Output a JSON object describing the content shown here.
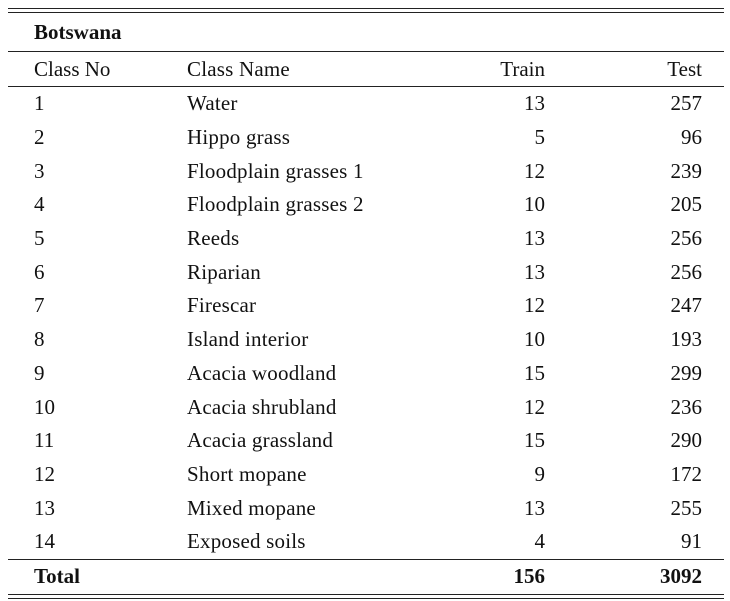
{
  "table": {
    "title": "Botswana",
    "headers": {
      "class_no": "Class No",
      "class_name": "Class Name",
      "train": "Train",
      "test": "Test"
    },
    "rows": [
      {
        "no": "1",
        "name": "Water",
        "train": "13",
        "test": "257"
      },
      {
        "no": "2",
        "name": "Hippo grass",
        "train": "5",
        "test": "96"
      },
      {
        "no": "3",
        "name": "Floodplain grasses 1",
        "train": "12",
        "test": "239"
      },
      {
        "no": "4",
        "name": "Floodplain grasses 2",
        "train": "10",
        "test": "205"
      },
      {
        "no": "5",
        "name": "Reeds",
        "train": "13",
        "test": "256"
      },
      {
        "no": "6",
        "name": "Riparian",
        "train": "13",
        "test": "256"
      },
      {
        "no": "7",
        "name": "Firescar",
        "train": "12",
        "test": "247"
      },
      {
        "no": "8",
        "name": "Island interior",
        "train": "10",
        "test": "193"
      },
      {
        "no": "9",
        "name": "Acacia woodland",
        "train": "15",
        "test": "299"
      },
      {
        "no": "10",
        "name": "Acacia shrubland",
        "train": "12",
        "test": "236"
      },
      {
        "no": "11",
        "name": "Acacia grassland",
        "train": "15",
        "test": "290"
      },
      {
        "no": "12",
        "name": "Short mopane",
        "train": "9",
        "test": "172"
      },
      {
        "no": "13",
        "name": "Mixed mopane",
        "train": "13",
        "test": "255"
      },
      {
        "no": "14",
        "name": "Exposed soils",
        "train": "4",
        "test": "91"
      }
    ],
    "total": {
      "label": "Total",
      "train": "156",
      "test": "3092"
    }
  }
}
